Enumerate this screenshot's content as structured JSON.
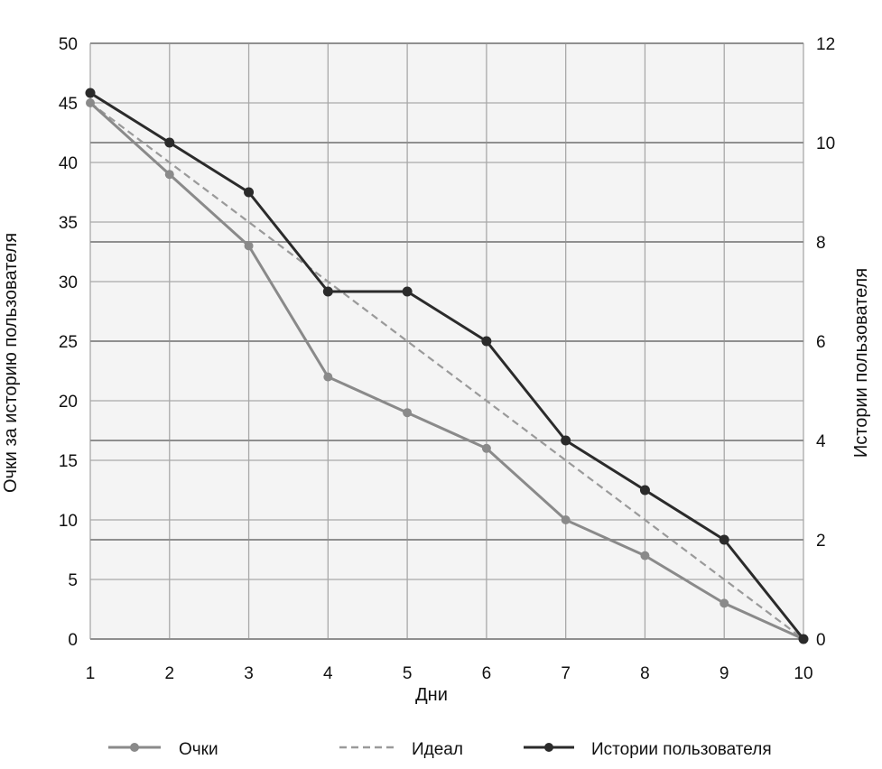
{
  "chart_data": {
    "type": "line",
    "x": [
      1,
      2,
      3,
      4,
      5,
      6,
      7,
      8,
      9,
      10
    ],
    "xlabel": "Дни",
    "ylabel_left": "Очки за историю пользователя",
    "ylabel_right": "Истории пользователя",
    "ylim_left": [
      0,
      50
    ],
    "ylim_right": [
      0,
      12
    ],
    "yticks_left": [
      0,
      5,
      10,
      15,
      20,
      25,
      30,
      35,
      40,
      45,
      50
    ],
    "yticks_right": [
      0,
      2,
      4,
      6,
      8,
      10,
      12
    ],
    "grid": true,
    "legend_position": "bottom",
    "series": [
      {
        "name": "Очки",
        "axis": "left",
        "style": "solid-markers",
        "color": "#8a8a8a",
        "values": [
          45,
          39,
          33,
          22,
          19,
          16,
          10,
          7,
          3,
          0
        ]
      },
      {
        "name": "Идеал",
        "axis": "left",
        "style": "dashed",
        "color": "#9a9a9a",
        "values": [
          45,
          40,
          35,
          30,
          25,
          20,
          15,
          10,
          5,
          0
        ]
      },
      {
        "name": "Истории пользователя",
        "axis": "right",
        "style": "solid-markers",
        "color": "#2b2b2b",
        "values": [
          11,
          10,
          9,
          7,
          7,
          6,
          4,
          3,
          2,
          0
        ]
      }
    ]
  }
}
